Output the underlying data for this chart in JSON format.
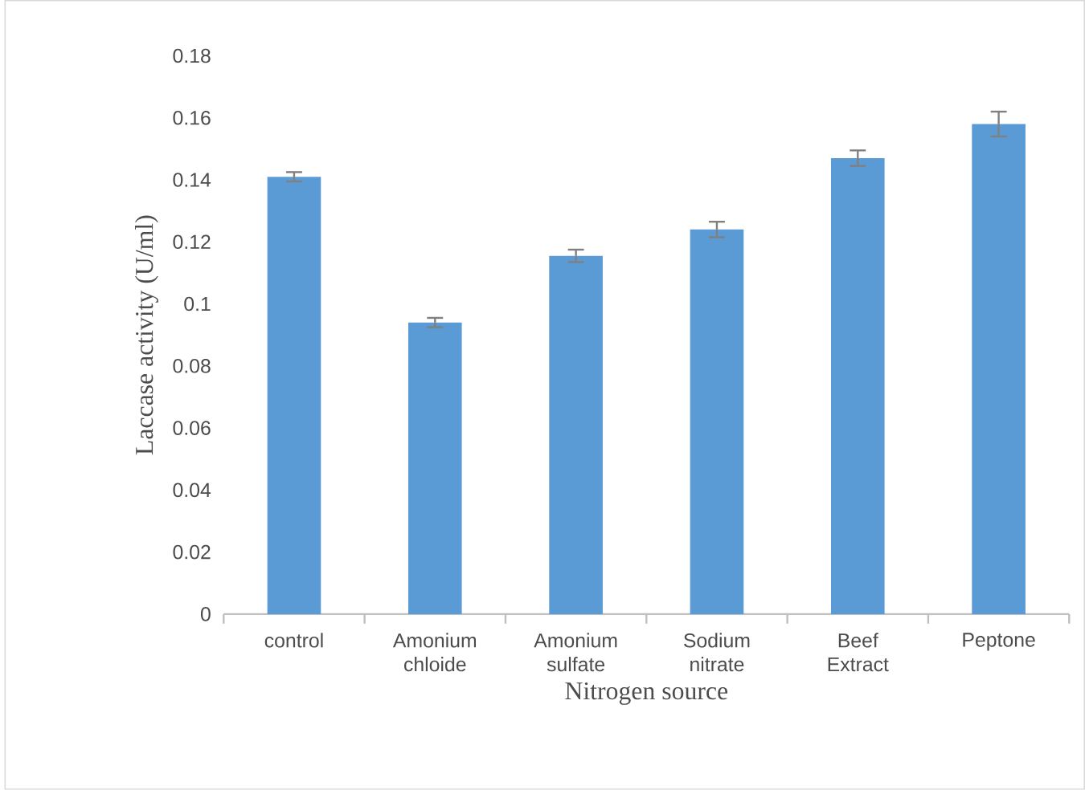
{
  "chart_data": {
    "type": "bar",
    "xlabel": "Nitrogen source",
    "ylabel": "Laccase activity (U/ml)",
    "categories": [
      "control",
      "Amonium chloide",
      "Amonium sulfate",
      "Sodium nitrate",
      "Beef Extract",
      "Peptone"
    ],
    "values": [
      0.141,
      0.094,
      0.1155,
      0.124,
      0.147,
      0.158
    ],
    "errors": [
      0.0015,
      0.0015,
      0.002,
      0.0025,
      0.0025,
      0.004
    ],
    "color": "#5b9bd5",
    "ylim": [
      0,
      0.18
    ],
    "yticks": [
      0,
      0.02,
      0.04,
      0.06,
      0.08,
      0.1,
      0.12,
      0.14,
      0.16,
      0.18
    ],
    "grid": false
  }
}
